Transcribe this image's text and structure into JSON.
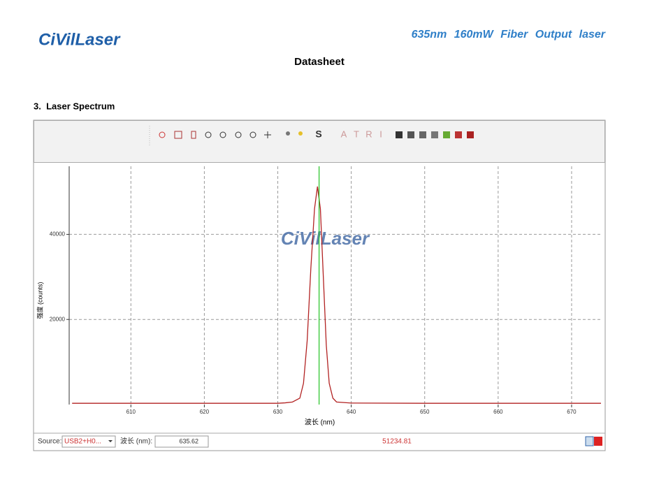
{
  "header": {
    "logo": "CiVilLaser",
    "product": "635nm 160mW Fiber Output laser",
    "doc_type": "Datasheet"
  },
  "section": {
    "title": "3.  Laser Spectrum"
  },
  "window": {
    "toolbar": [
      "S",
      "A",
      "T",
      "R",
      "I"
    ],
    "watermark": "CiVilLaser",
    "status": {
      "source_label": "Source:",
      "source": "USB2+H0...",
      "wavelength_label": "波长 (nm):",
      "wavelength": 635.62,
      "intensity": 51234.81
    }
  },
  "chart_data": {
    "type": "line",
    "x_label": "波长 (nm)",
    "y_label": "强度 (counts)",
    "x": [
      602,
      610,
      620,
      630,
      631,
      632,
      633,
      633.5,
      634,
      634.5,
      635,
      635.4,
      635.8,
      636.2,
      636.6,
      637,
      637.5,
      638,
      640,
      650,
      660,
      674
    ],
    "values": [
      300,
      300,
      300,
      300,
      400,
      600,
      1500,
      5000,
      15000,
      32000,
      46000,
      51234.81,
      46000,
      30000,
      14000,
      5000,
      1500,
      600,
      350,
      300,
      300,
      300
    ],
    "color": "#b22222",
    "cursor_color": "#22c422",
    "xlim": [
      601.6,
      674
    ],
    "ylim": [
      0,
      56000
    ],
    "xticks": [
      610,
      620,
      630,
      640,
      650,
      660,
      670
    ],
    "yticks": [
      20000,
      40000
    ],
    "grid": true
  }
}
